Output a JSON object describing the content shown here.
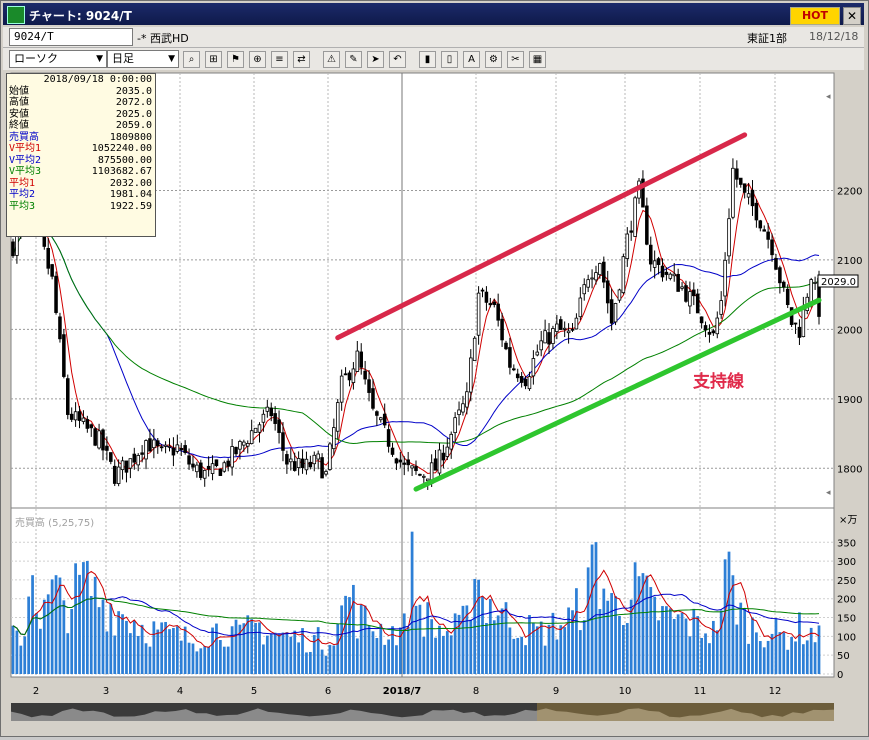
{
  "window": {
    "title": "チャート: 9024/T",
    "hot_label": "HOT",
    "close_label": "✕"
  },
  "header": {
    "code": "9024/T",
    "company": "-* 西武HD",
    "market": "東証1部",
    "date": "18/12/18"
  },
  "toolbar": {
    "chart_type": "ローソク",
    "period": "日足",
    "icons": [
      "zoom-icon",
      "cursor-icon",
      "bell-icon",
      "magnify-icon",
      "compare-icon",
      "swap-icon",
      "alert-icon",
      "pen-icon",
      "arrow-icon",
      "undo-icon",
      "bar-icon",
      "bar-icon-2",
      "all-icon",
      "settings-icon",
      "tool-icon",
      "palette-icon"
    ]
  },
  "info_panel": {
    "date": "2018/09/18 0:00:00",
    "rows": [
      {
        "label": "始値",
        "value": "2035.0",
        "color": "#000000"
      },
      {
        "label": "高値",
        "value": "2072.0",
        "color": "#000000"
      },
      {
        "label": "安値",
        "value": "2025.0",
        "color": "#000000"
      },
      {
        "label": "終値",
        "value": "2059.0",
        "color": "#000000"
      },
      {
        "label": "売買高",
        "value": "1809800",
        "color": "#0000c8"
      },
      {
        "label": "V平均1",
        "value": "1052240.00",
        "color": "#d00000"
      },
      {
        "label": "V平均2",
        "value": "875500.00",
        "color": "#0000c8"
      },
      {
        "label": "V平均3",
        "value": "1103682.67",
        "color": "#008000"
      },
      {
        "label": "平均1",
        "value": "2032.00",
        "color": "#d00000"
      },
      {
        "label": "平均2",
        "value": "1981.04",
        "color": "#0000c8"
      },
      {
        "label": "平均3",
        "value": "1922.59",
        "color": "#008000"
      }
    ]
  },
  "chart_data": {
    "type": "candlestick",
    "period": "日足",
    "price_axis": {
      "ticks": [
        1800,
        1900,
        2000,
        2100,
        2200
      ],
      "range": [
        1750,
        2300
      ]
    },
    "last_price_label": "2029.0",
    "volume_axis": {
      "unit": "×万",
      "ticks": [
        0,
        50,
        100,
        150,
        200,
        250,
        300,
        350
      ],
      "range": [
        0,
        380
      ]
    },
    "volume_label": "売買高 (5,25,75)",
    "x_labels": [
      "2",
      "3",
      "4",
      "5",
      "6",
      "2018/7",
      "8",
      "9",
      "10",
      "11",
      "12"
    ],
    "annotation": {
      "text": "支持線",
      "color": "#e02a4a"
    },
    "trendlines": [
      {
        "name": "resistance",
        "color": "#d8284a",
        "from": {
          "index": 83,
          "price": 1988
        },
        "to": {
          "index": 187,
          "price": 2280
        }
      },
      {
        "name": "support",
        "color": "#2ec62e",
        "from": {
          "index": 103,
          "price": 1770
        },
        "to": {
          "index": 206,
          "price": 2042
        }
      }
    ],
    "moving_averages": [
      {
        "name": "平均1",
        "color": "#d00000",
        "period": 5
      },
      {
        "name": "平均2",
        "color": "#0000c8",
        "period": 25
      },
      {
        "name": "平均3",
        "color": "#008000",
        "period": 75
      }
    ],
    "volume_averages": [
      {
        "name": "V平均1",
        "color": "#d00000",
        "period": 5
      },
      {
        "name": "V平均2",
        "color": "#0000c8",
        "period": 25
      },
      {
        "name": "V平均3",
        "color": "#008000",
        "period": 75
      }
    ],
    "ohlc_nodes": [
      [
        0,
        2120
      ],
      [
        3,
        2160
      ],
      [
        7,
        2130
      ],
      [
        10,
        2070
      ],
      [
        14,
        1880
      ],
      [
        18,
        1860
      ],
      [
        22,
        1840
      ],
      [
        26,
        1790
      ],
      [
        30,
        1810
      ],
      [
        34,
        1840
      ],
      [
        38,
        1820
      ],
      [
        42,
        1830
      ],
      [
        46,
        1800
      ],
      [
        50,
        1790
      ],
      [
        54,
        1805
      ],
      [
        58,
        1830
      ],
      [
        62,
        1860
      ],
      [
        66,
        1880
      ],
      [
        70,
        1810
      ],
      [
        74,
        1800
      ],
      [
        78,
        1810
      ],
      [
        80,
        1790
      ],
      [
        84,
        1920
      ],
      [
        88,
        1960
      ],
      [
        92,
        1880
      ],
      [
        96,
        1840
      ],
      [
        100,
        1800
      ],
      [
        104,
        1790
      ],
      [
        108,
        1800
      ],
      [
        112,
        1850
      ],
      [
        116,
        1900
      ],
      [
        119,
        2050
      ],
      [
        123,
        2030
      ],
      [
        127,
        1950
      ],
      [
        131,
        1930
      ],
      [
        135,
        1980
      ],
      [
        139,
        2000
      ],
      [
        143,
        1990
      ],
      [
        147,
        2080
      ],
      [
        150,
        2100
      ],
      [
        153,
        2010
      ],
      [
        157,
        2130
      ],
      [
        160,
        2200
      ],
      [
        163,
        2100
      ],
      [
        167,
        2080
      ],
      [
        171,
        2060
      ],
      [
        175,
        2030
      ],
      [
        179,
        1990
      ],
      [
        181,
        2040
      ],
      [
        184,
        2230
      ],
      [
        187,
        2190
      ],
      [
        190,
        2170
      ],
      [
        194,
        2120
      ],
      [
        197,
        2050
      ],
      [
        199,
        2010
      ],
      [
        201,
        2000
      ],
      [
        204,
        2080
      ],
      [
        206,
        2029
      ]
    ],
    "volume_nodes": [
      [
        0,
        95
      ],
      [
        3,
        110
      ],
      [
        5,
        320
      ],
      [
        7,
        130
      ],
      [
        10,
        220
      ],
      [
        14,
        180
      ],
      [
        18,
        250
      ],
      [
        22,
        200
      ],
      [
        26,
        170
      ],
      [
        30,
        150
      ],
      [
        34,
        120
      ],
      [
        38,
        110
      ],
      [
        42,
        100
      ],
      [
        46,
        90
      ],
      [
        50,
        115
      ],
      [
        54,
        120
      ],
      [
        58,
        100
      ],
      [
        62,
        130
      ],
      [
        66,
        110
      ],
      [
        70,
        100
      ],
      [
        74,
        95
      ],
      [
        78,
        90
      ],
      [
        80,
        80
      ],
      [
        84,
        160
      ],
      [
        86,
        220
      ],
      [
        88,
        150
      ],
      [
        92,
        130
      ],
      [
        96,
        110
      ],
      [
        100,
        120
      ],
      [
        102,
        285
      ],
      [
        104,
        170
      ],
      [
        108,
        120
      ],
      [
        112,
        110
      ],
      [
        116,
        140
      ],
      [
        118,
        310
      ],
      [
        119,
        250
      ],
      [
        120,
        200
      ],
      [
        123,
        180
      ],
      [
        127,
        140
      ],
      [
        131,
        120
      ],
      [
        135,
        110
      ],
      [
        139,
        130
      ],
      [
        143,
        150
      ],
      [
        147,
        220
      ],
      [
        149,
        320
      ],
      [
        150,
        250
      ],
      [
        153,
        180
      ],
      [
        157,
        200
      ],
      [
        160,
        230
      ],
      [
        163,
        180
      ],
      [
        167,
        150
      ],
      [
        171,
        140
      ],
      [
        175,
        130
      ],
      [
        179,
        110
      ],
      [
        181,
        190
      ],
      [
        183,
        280
      ],
      [
        184,
        220
      ],
      [
        187,
        140
      ],
      [
        190,
        120
      ],
      [
        194,
        110
      ],
      [
        197,
        100
      ],
      [
        199,
        105
      ],
      [
        201,
        120
      ],
      [
        204,
        110
      ],
      [
        206,
        95
      ]
    ]
  }
}
